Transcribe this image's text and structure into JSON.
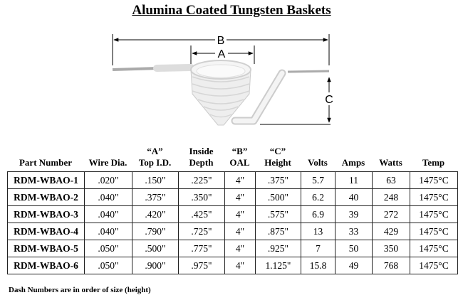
{
  "title": "Alumina Coated Tungsten Baskets",
  "diagram": {
    "labels": {
      "a": "A",
      "b": "B",
      "c": "C"
    }
  },
  "table": {
    "headers": [
      [
        "",
        "Part Number"
      ],
      [
        "",
        "Wire Dia."
      ],
      [
        "“A”",
        "Top I.D."
      ],
      [
        "Inside",
        "Depth"
      ],
      [
        "“B”",
        "OAL"
      ],
      [
        "“C”",
        "Height"
      ],
      [
        "",
        "Volts"
      ],
      [
        "",
        "Amps"
      ],
      [
        "",
        "Watts"
      ],
      [
        "",
        "Temp"
      ]
    ],
    "rows": [
      [
        "RDM-WBAO-1",
        ".020\"",
        ".150\"",
        ".225\"",
        "4\"",
        ".375\"",
        "5.7",
        "11",
        "63",
        "1475°C"
      ],
      [
        "RDM-WBAO-2",
        ".040\"",
        ".375\"",
        ".350\"",
        "4\"",
        ".500\"",
        "6.2",
        "40",
        "248",
        "1475°C"
      ],
      [
        "RDM-WBAO-3",
        ".040\"",
        ".420\"",
        ".425\"",
        "4\"",
        ".575\"",
        "6.9",
        "39",
        "272",
        "1475°C"
      ],
      [
        "RDM-WBAO-4",
        ".040\"",
        ".790\"",
        ".725\"",
        "4\"",
        ".875\"",
        "13",
        "33",
        "429",
        "1475°C"
      ],
      [
        "RDM-WBAO-5",
        ".050\"",
        ".500\"",
        ".775\"",
        "4\"",
        ".925\"",
        "7",
        "50",
        "350",
        "1475°C"
      ],
      [
        "RDM-WBAO-6",
        ".050\"",
        ".900\"",
        ".975\"",
        "4\"",
        "1.125\"",
        "15.8",
        "49",
        "768",
        "1475°C"
      ]
    ]
  },
  "footnote": "Dash Numbers are in order of size (height)"
}
